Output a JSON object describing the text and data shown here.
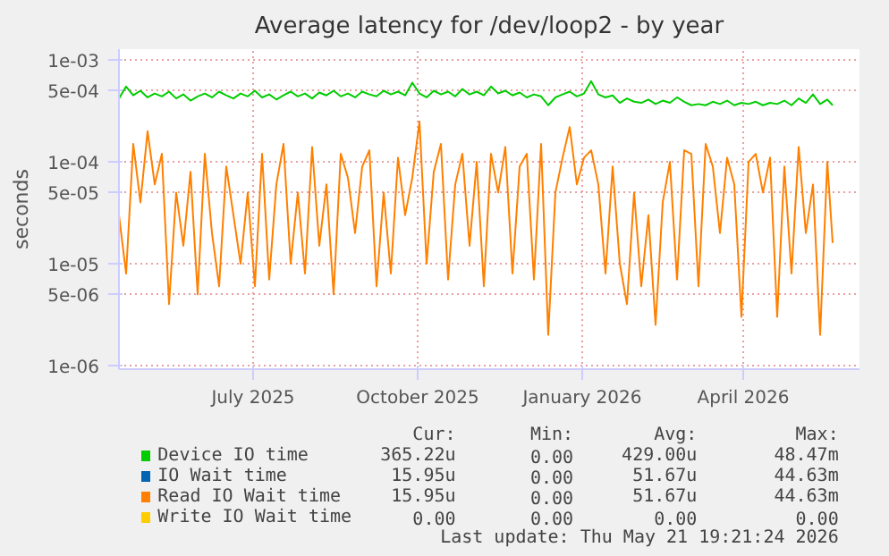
{
  "chart_data": {
    "type": "line",
    "title": "Average latency for /dev/loop2 - by year",
    "ylabel": "seconds",
    "log": "y",
    "grid": true,
    "legend": "bottom",
    "xlim": [
      "2025-04-17",
      "2026-06-05"
    ],
    "ylim": [
      9.2e-07,
      0.00128
    ],
    "xticks": [
      {
        "value": "2025-07-01",
        "label": "July 2025"
      },
      {
        "value": "2025-10-01",
        "label": "October 2025"
      },
      {
        "value": "2026-01-01",
        "label": "January 2026"
      },
      {
        "value": "2026-04-01",
        "label": "April 2026"
      }
    ],
    "yticks": [
      {
        "value": 1e-06,
        "label": "1e-06"
      },
      {
        "value": 5e-06,
        "label": "5e-06"
      },
      {
        "value": 1e-05,
        "label": "1e-05"
      },
      {
        "value": 5e-05,
        "label": "5e-05"
      },
      {
        "value": 0.0001,
        "label": "1e-04"
      },
      {
        "value": 0.0005,
        "label": "5e-04"
      },
      {
        "value": 0.001,
        "label": "1e-03"
      }
    ],
    "x": [
      "2025-04-17",
      "2025-04-21",
      "2025-04-25",
      "2025-04-29",
      "2025-05-03",
      "2025-05-07",
      "2025-05-11",
      "2025-05-15",
      "2025-05-19",
      "2025-05-23",
      "2025-05-27",
      "2025-05-31",
      "2025-06-04",
      "2025-06-08",
      "2025-06-12",
      "2025-06-16",
      "2025-06-20",
      "2025-06-24",
      "2025-06-28",
      "2025-07-02",
      "2025-07-06",
      "2025-07-10",
      "2025-07-14",
      "2025-07-18",
      "2025-07-22",
      "2025-07-26",
      "2025-07-30",
      "2025-08-03",
      "2025-08-07",
      "2025-08-11",
      "2025-08-15",
      "2025-08-19",
      "2025-08-23",
      "2025-08-27",
      "2025-08-31",
      "2025-09-04",
      "2025-09-08",
      "2025-09-12",
      "2025-09-16",
      "2025-09-20",
      "2025-09-24",
      "2025-09-28",
      "2025-10-02",
      "2025-10-06",
      "2025-10-10",
      "2025-10-14",
      "2025-10-18",
      "2025-10-22",
      "2025-10-26",
      "2025-10-30",
      "2025-11-03",
      "2025-11-07",
      "2025-11-11",
      "2025-11-15",
      "2025-11-19",
      "2025-11-23",
      "2025-11-27",
      "2025-12-01",
      "2025-12-05",
      "2025-12-09",
      "2025-12-13",
      "2025-12-17",
      "2025-12-21",
      "2025-12-25",
      "2025-12-29",
      "2026-01-02",
      "2026-01-06",
      "2026-01-10",
      "2026-01-14",
      "2026-01-18",
      "2026-01-22",
      "2026-01-26",
      "2026-01-30",
      "2026-02-03",
      "2026-02-07",
      "2026-02-11",
      "2026-02-15",
      "2026-02-19",
      "2026-02-23",
      "2026-02-27",
      "2026-03-03",
      "2026-03-07",
      "2026-03-11",
      "2026-03-15",
      "2026-03-19",
      "2026-03-23",
      "2026-03-27",
      "2026-03-31",
      "2026-04-04",
      "2026-04-08",
      "2026-04-12",
      "2026-04-16",
      "2026-04-20",
      "2026-04-24",
      "2026-04-28",
      "2026-05-02",
      "2026-05-06",
      "2026-05-10",
      "2026-05-14",
      "2026-05-18",
      "2026-05-21"
    ],
    "series": [
      {
        "name": "Device IO time",
        "color": "#00cc00",
        "values": [
          0.00042,
          0.00055,
          0.00045,
          0.0005,
          0.00043,
          0.00047,
          0.00044,
          0.00049,
          0.00042,
          0.00046,
          0.0004,
          0.00044,
          0.00047,
          0.00043,
          0.00049,
          0.00045,
          0.00042,
          0.00047,
          0.00044,
          0.0005,
          0.00043,
          0.00046,
          0.00041,
          0.00045,
          0.00049,
          0.00044,
          0.00047,
          0.00042,
          0.00048,
          0.00045,
          0.0005,
          0.00044,
          0.00047,
          0.00043,
          0.00049,
          0.00046,
          0.00044,
          0.0005,
          0.00046,
          0.00049,
          0.00045,
          0.0006,
          0.00047,
          0.00043,
          0.0005,
          0.00046,
          0.00049,
          0.00044,
          0.00052,
          0.00046,
          0.00049,
          0.00045,
          0.00055,
          0.00047,
          0.0005,
          0.00045,
          0.00048,
          0.00043,
          0.00046,
          0.00044,
          0.00036,
          0.00043,
          0.00046,
          0.00049,
          0.00044,
          0.00047,
          0.00062,
          0.00046,
          0.00043,
          0.00045,
          0.00038,
          0.00042,
          0.00039,
          0.00038,
          0.00041,
          0.00037,
          0.0004,
          0.00038,
          0.00043,
          0.00039,
          0.00036,
          0.00037,
          0.00036,
          0.00039,
          0.00037,
          0.0004,
          0.00036,
          0.00038,
          0.00037,
          0.00039,
          0.00036,
          0.00038,
          0.00037,
          0.0004,
          0.00036,
          0.00042,
          0.00038,
          0.00046,
          0.00037,
          0.00041,
          0.00036
        ]
      },
      {
        "name": "IO Wait time",
        "color": "#0066b3",
        "values": [
          null,
          null,
          null,
          null,
          null,
          null,
          null,
          null,
          null,
          null,
          null,
          null,
          null,
          null,
          null,
          null,
          null,
          null,
          null,
          null,
          null,
          null,
          null,
          null,
          null,
          null,
          null,
          null,
          null,
          null,
          null,
          null,
          null,
          null,
          null,
          null,
          null,
          null,
          null,
          null,
          null,
          null,
          null,
          null,
          null,
          null,
          null,
          null,
          null,
          null,
          null,
          null,
          null,
          null,
          null,
          null,
          null,
          null,
          null,
          null,
          null,
          null,
          null,
          null,
          null,
          null,
          null,
          null,
          null,
          null,
          null,
          null,
          null,
          null,
          null,
          null,
          null,
          null,
          null,
          null,
          null,
          null,
          null,
          null,
          null,
          null,
          null,
          null,
          null,
          null,
          null,
          null,
          null,
          null,
          null,
          null,
          null,
          null,
          null,
          null,
          null
        ]
      },
      {
        "name": "Read IO Wait time",
        "color": "#ff8000",
        "values": [
          3e-05,
          8e-06,
          0.00015,
          4e-05,
          0.0002,
          6e-05,
          0.00012,
          4e-06,
          5e-05,
          1.5e-05,
          8e-05,
          5e-06,
          0.00012,
          2e-05,
          6e-06,
          9e-05,
          3e-05,
          1e-05,
          5e-05,
          6e-06,
          0.00012,
          7e-06,
          6e-05,
          0.00015,
          1e-05,
          5e-05,
          8e-06,
          0.00014,
          1.5e-05,
          6e-05,
          5e-06,
          0.00012,
          7e-05,
          2e-05,
          9e-05,
          0.00013,
          6e-06,
          5e-05,
          8e-06,
          0.00011,
          3e-05,
          7e-05,
          0.00025,
          1e-05,
          8e-05,
          0.00015,
          7e-06,
          6e-05,
          0.00012,
          1.5e-05,
          0.0001,
          6e-06,
          0.00012,
          5e-05,
          0.00014,
          8e-06,
          9e-05,
          0.00012,
          7e-06,
          0.00015,
          2e-06,
          5e-05,
          0.00011,
          0.00022,
          6e-05,
          0.00011,
          0.00013,
          6e-05,
          8e-06,
          9e-05,
          1e-05,
          4e-06,
          5e-05,
          6e-06,
          3e-05,
          2.5e-06,
          4e-05,
          0.0001,
          7e-06,
          0.00013,
          0.00012,
          6e-06,
          0.00015,
          9e-05,
          2e-05,
          0.00011,
          6e-05,
          3e-06,
          0.0001,
          0.00012,
          5e-05,
          0.00011,
          3e-06,
          9e-05,
          8e-06,
          0.00014,
          2e-05,
          6e-05,
          2e-06,
          0.0001,
          1.6e-05
        ]
      },
      {
        "name": "Write IO Wait time",
        "color": "#ffcc00",
        "values": [
          null,
          null,
          null,
          null,
          null,
          null,
          null,
          null,
          null,
          null,
          null,
          null,
          null,
          null,
          null,
          null,
          null,
          null,
          null,
          null,
          null,
          null,
          null,
          null,
          null,
          null,
          null,
          null,
          null,
          null,
          null,
          null,
          null,
          null,
          null,
          null,
          null,
          null,
          null,
          null,
          null,
          null,
          null,
          null,
          null,
          null,
          null,
          null,
          null,
          null,
          null,
          null,
          null,
          null,
          null,
          null,
          null,
          null,
          null,
          null,
          null,
          null,
          null,
          null,
          null,
          null,
          null,
          null,
          null,
          null,
          null,
          null,
          null,
          null,
          null,
          null,
          null,
          null,
          null,
          null,
          null,
          null,
          null,
          null,
          null,
          null,
          null,
          null,
          null,
          null,
          null,
          null,
          null,
          null,
          null,
          null,
          null,
          null,
          null,
          null,
          null
        ]
      }
    ],
    "annotations": [
      "Cur:",
      "Min:",
      "Avg:",
      "Max:",
      "365.22u",
      "0.00",
      "429.00u",
      "48.47m",
      "15.95u",
      "0.00",
      "51.67u",
      "44.63m",
      "15.95u",
      "0.00",
      "51.67u",
      "44.63m",
      "0.00",
      "0.00",
      "0.00",
      "0.00",
      "Last update: Thu May 21 19:21:24 2026"
    ]
  }
}
